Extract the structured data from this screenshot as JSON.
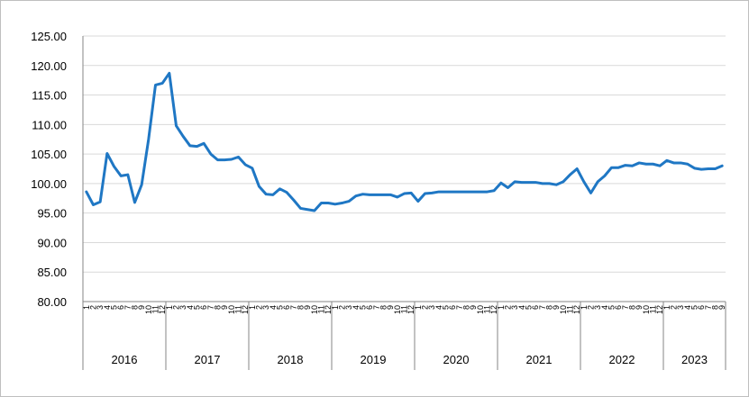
{
  "chart_data": {
    "type": "line",
    "title": "",
    "xlabel": "",
    "ylabel": "",
    "ylim": [
      80,
      125
    ],
    "y_ticks": [
      "80.00",
      "85.00",
      "90.00",
      "95.00",
      "100.00",
      "105.00",
      "110.00",
      "115.00",
      "120.00",
      "125.00"
    ],
    "grid": "horizontal",
    "years": [
      "2016",
      "2017",
      "2018",
      "2019",
      "2020",
      "2021",
      "2022",
      "2023"
    ],
    "months_per_year": [
      12,
      12,
      12,
      12,
      12,
      12,
      12,
      9
    ],
    "month_labels": [
      "1",
      "2",
      "3",
      "4",
      "5",
      "6",
      "7",
      "8",
      "9",
      "10",
      "11",
      "12"
    ],
    "line_color": "#1f77c4",
    "series": [
      {
        "values": [
          98.6,
          96.4,
          96.9,
          105.1,
          102.9,
          101.3,
          101.5,
          96.8,
          99.8,
          107.5,
          116.7,
          117.0,
          118.7,
          109.8,
          108.0,
          106.4,
          106.3,
          106.8,
          105.0,
          104.0,
          104.0,
          104.1,
          104.5,
          103.2,
          102.6,
          99.5,
          98.2,
          98.1,
          99.1,
          98.5,
          97.2,
          95.8,
          95.6,
          95.4,
          96.7,
          96.7,
          96.5,
          96.7,
          97.0,
          97.9,
          98.2,
          98.1,
          98.1,
          98.1,
          98.1,
          97.7,
          98.3,
          98.4,
          97.0,
          98.3,
          98.4,
          98.6,
          98.6,
          98.6,
          98.6,
          98.6,
          98.6,
          98.6,
          98.6,
          98.8,
          100.1,
          99.3,
          100.3,
          100.2,
          100.2,
          100.2,
          100.0,
          100.0,
          99.8,
          100.3,
          101.5,
          102.5,
          100.3,
          98.4,
          100.3,
          101.3,
          102.7,
          102.7,
          103.1,
          103.0,
          103.5,
          103.3,
          103.3,
          103.0,
          103.9,
          103.5,
          103.5,
          103.3,
          102.6,
          102.4,
          102.5,
          102.5,
          103.0
        ]
      }
    ]
  }
}
